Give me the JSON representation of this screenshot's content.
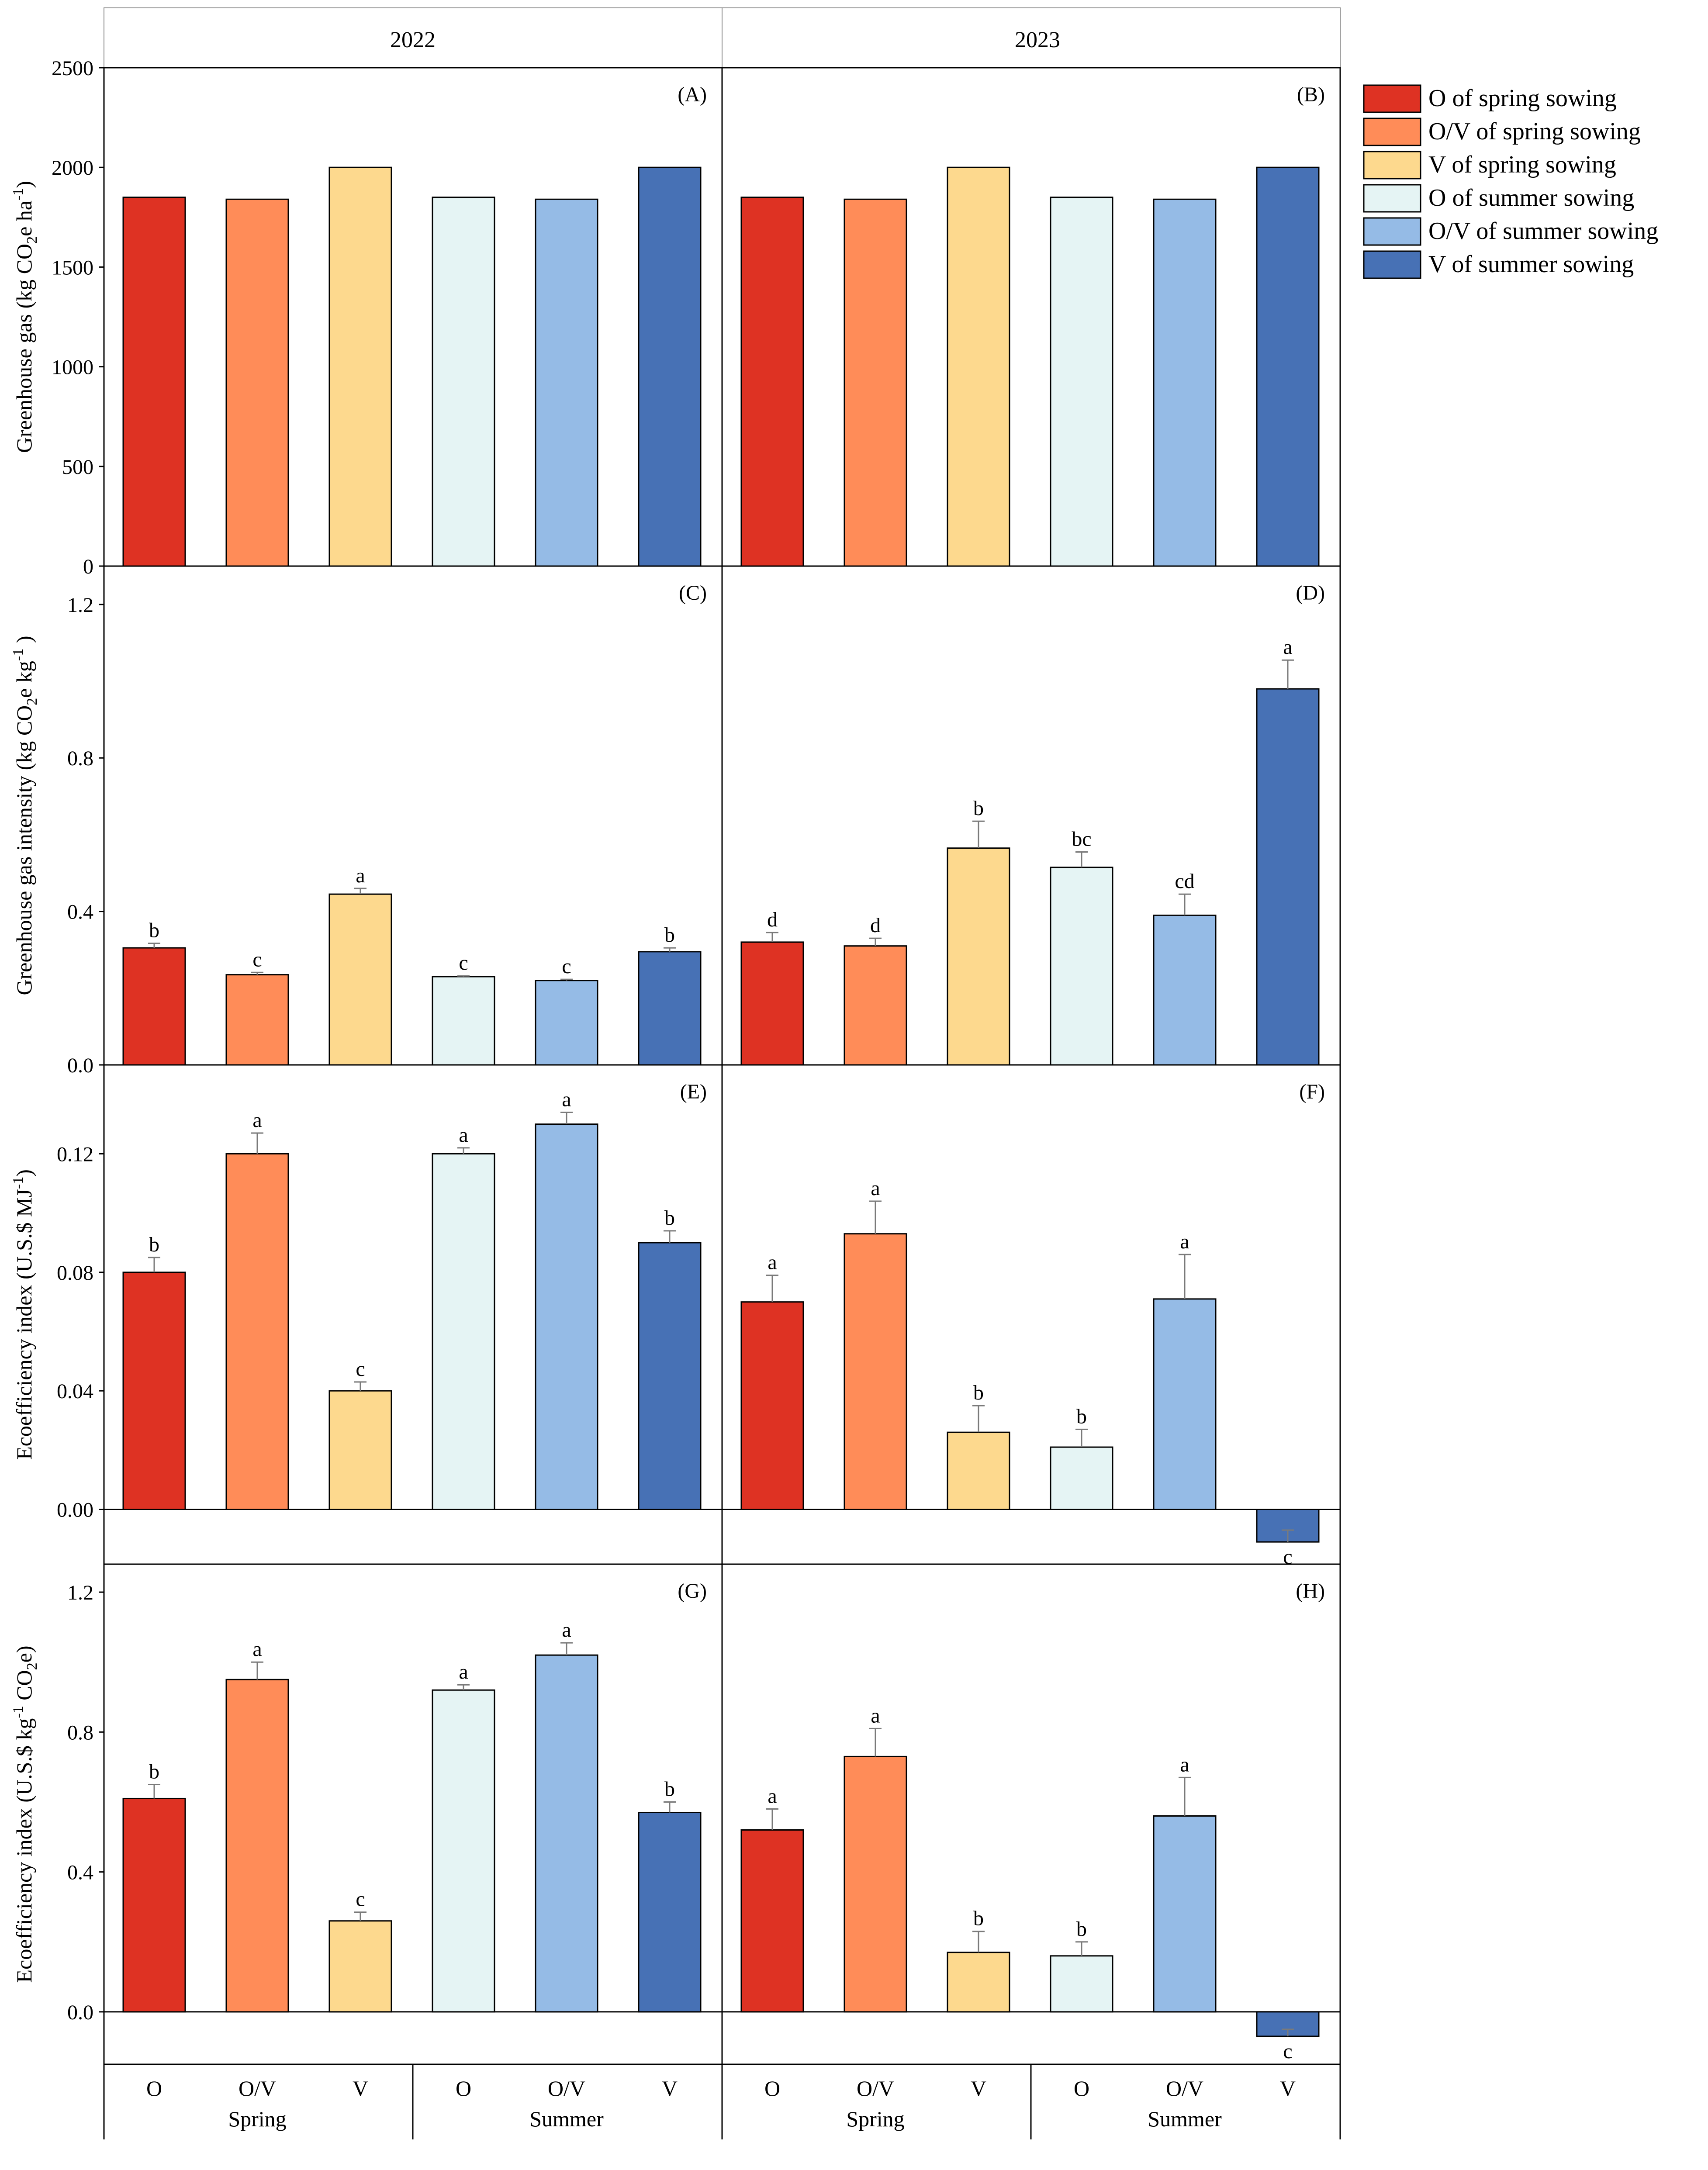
{
  "colors": {
    "O_spring": "#DE3223",
    "OV_spring": "#FF8C58",
    "V_spring": "#FDD98E",
    "O_summer": "#E5F4F4",
    "OV_summer": "#95BBE6",
    "V_summer": "#4771B5"
  },
  "header": {
    "years": [
      "2022",
      "2023"
    ]
  },
  "legend": {
    "entries": [
      {
        "label": "O of spring sowing",
        "color_key": "O_spring"
      },
      {
        "label": "O/V of spring sowing",
        "color_key": "OV_spring"
      },
      {
        "label": "V of spring sowing",
        "color_key": "V_spring"
      },
      {
        "label": "O of summer sowing",
        "color_key": "O_summer"
      },
      {
        "label": "O/V of summer sowing",
        "color_key": "OV_summer"
      },
      {
        "label": "V of summer sowing",
        "color_key": "V_summer"
      }
    ]
  },
  "x_axis": {
    "treatments": [
      "O",
      "O/V",
      "V",
      "O",
      "O/V",
      "V"
    ],
    "groups": [
      "Spring",
      "Summer"
    ]
  },
  "chart_data": {
    "type": "bar",
    "series_colors": [
      "O_spring",
      "OV_spring",
      "V_spring",
      "O_summer",
      "OV_summer",
      "V_summer"
    ],
    "rows": [
      {
        "ylabel_parts": [
          "Greenhouse gas (kg CO",
          "2",
          "e ha",
          "-1",
          ")"
        ],
        "ylim": [
          0,
          2500
        ],
        "ticks": [
          0,
          500,
          1000,
          1500,
          2000,
          2500
        ],
        "tick_labels": [
          "0",
          "500",
          "1000",
          "1500",
          "2000",
          "2500"
        ],
        "panels": [
          {
            "label": "(A)",
            "values": [
              1850,
              1840,
              2000,
              1850,
              1840,
              2000
            ],
            "errors": [
              0,
              0,
              0,
              0,
              0,
              0
            ],
            "letters": [
              "",
              "",
              "",
              "",
              "",
              ""
            ]
          },
          {
            "label": "(B)",
            "values": [
              1850,
              1840,
              2000,
              1850,
              1840,
              2000
            ],
            "errors": [
              0,
              0,
              0,
              0,
              0,
              0
            ],
            "letters": [
              "",
              "",
              "",
              "",
              "",
              ""
            ]
          }
        ]
      },
      {
        "ylabel_parts": [
          "Greenhouse gas intensity (kg CO",
          "2",
          "e kg",
          "-1",
          " )"
        ],
        "ylim": [
          0,
          1.3
        ],
        "ticks": [
          0,
          0.4,
          0.8,
          1.2
        ],
        "tick_labels": [
          "0.0",
          "0.4",
          "0.8",
          "1.2"
        ],
        "panels": [
          {
            "label": "(C)",
            "values": [
              0.305,
              0.235,
              0.445,
              0.23,
              0.22,
              0.295
            ],
            "errors": [
              0.012,
              0.006,
              0.015,
              0.002,
              0.003,
              0.01
            ],
            "letters": [
              "b",
              "c",
              "a",
              "c",
              "c",
              "b"
            ]
          },
          {
            "label": "(D)",
            "values": [
              0.32,
              0.31,
              0.565,
              0.515,
              0.39,
              0.98
            ],
            "errors": [
              0.025,
              0.02,
              0.07,
              0.04,
              0.055,
              0.075
            ],
            "letters": [
              "d",
              "d",
              "b",
              "bc",
              "cd",
              "a"
            ]
          }
        ]
      },
      {
        "ylabel_parts": [
          "Ecoefficiency index (U.S.$ MJ",
          "-1",
          ")"
        ],
        "ylim": [
          -0.0185,
          0.15
        ],
        "ticks": [
          0,
          0.04,
          0.08,
          0.12
        ],
        "tick_labels": [
          "0.00",
          "0.04",
          "0.08",
          "0.12"
        ],
        "panels": [
          {
            "label": "(E)",
            "values": [
              0.08,
              0.12,
              0.04,
              0.12,
              0.13,
              0.09
            ],
            "errors": [
              0.005,
              0.007,
              0.003,
              0.002,
              0.004,
              0.004
            ],
            "letters": [
              "b",
              "a",
              "c",
              "a",
              "a",
              "b"
            ]
          },
          {
            "label": "(F)",
            "values": [
              0.07,
              0.093,
              0.026,
              0.021,
              0.071,
              -0.011
            ],
            "errors": [
              0.009,
              0.011,
              0.009,
              0.006,
              0.015,
              0.004
            ],
            "letters": [
              "a",
              "a",
              "b",
              "b",
              "a",
              "c"
            ]
          }
        ]
      },
      {
        "ylabel_parts": [
          "Ecoefficiency index (U.S.$ kg",
          "-1",
          " CO",
          "2",
          "e)"
        ],
        "ylim": [
          -0.15,
          1.28
        ],
        "ticks": [
          0,
          0.4,
          0.8,
          1.2
        ],
        "tick_labels": [
          "0.0",
          "0.4",
          "0.8",
          "1.2"
        ],
        "panels": [
          {
            "label": "(G)",
            "values": [
              0.61,
              0.95,
              0.26,
              0.92,
              1.02,
              0.57
            ],
            "errors": [
              0.04,
              0.05,
              0.025,
              0.015,
              0.035,
              0.03
            ],
            "letters": [
              "b",
              "a",
              "c",
              "a",
              "a",
              "b"
            ]
          },
          {
            "label": "(H)",
            "values": [
              0.52,
              0.73,
              0.17,
              0.16,
              0.56,
              -0.07
            ],
            "errors": [
              0.06,
              0.08,
              0.06,
              0.04,
              0.11,
              0.02
            ],
            "letters": [
              "a",
              "a",
              "b",
              "b",
              "a",
              "c"
            ]
          }
        ]
      }
    ]
  }
}
